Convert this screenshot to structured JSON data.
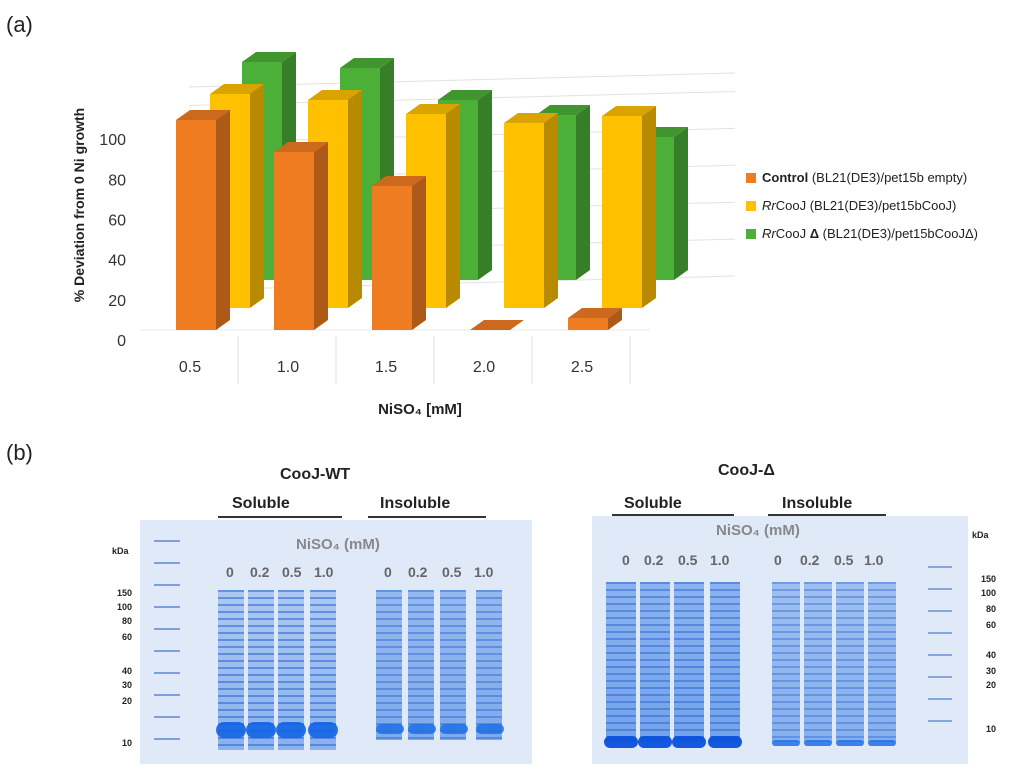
{
  "panel_a_label": "(a)",
  "panel_b_label": "(b)",
  "chart_data": {
    "type": "bar",
    "categories": [
      "0.5",
      "1.0",
      "1.5",
      "2.0",
      "2.5"
    ],
    "xlabel": "NiSO₄ [mM]",
    "ylabel": "% Deviation from 0 Ni growth",
    "yticks": [
      "0",
      "20",
      "40",
      "60",
      "80",
      "100"
    ],
    "ylim": [
      0,
      100
    ],
    "legend_position": "right",
    "series": [
      {
        "name": "Control",
        "name_suffix": " (BL21(DE3)/pet15b empty)",
        "color": "#f07c22",
        "values": [
          94,
          80,
          65,
          0,
          5
        ]
      },
      {
        "name": "RrCooJ",
        "name_prefix": "Rr",
        "name_main": "CooJ",
        "name_suffix": " (BL21(DE3)/pet15bCooJ)",
        "color": "#ffc000",
        "values": [
          100,
          100,
          100,
          100,
          100
        ]
      },
      {
        "name": "RrCooJ Δ",
        "name_prefix": "Rr",
        "name_main": "CooJ ",
        "name_bold": "Δ",
        "name_suffix": " (BL21(DE3)/pet15bCooJΔ)",
        "color": "#4caf37",
        "values": [
          100,
          100,
          100,
          100,
          100
        ]
      }
    ]
  },
  "gels": [
    {
      "title": "CooJ-WT",
      "fraction_soluble": "Soluble",
      "fraction_insoluble": "Insoluble",
      "nisO4_label": "NiSO₄ (mM)",
      "concentrations": [
        "0",
        "0.2",
        "0.5",
        "1.0",
        "0",
        "0.2",
        "0.5",
        "1.0"
      ],
      "kda_label": "kDa",
      "mw_markers": [
        "150",
        "100",
        "80",
        "60",
        "40",
        "30",
        "20",
        "10"
      ]
    },
    {
      "title": "CooJ-Δ",
      "fraction_soluble": "Soluble",
      "fraction_insoluble": "Insoluble",
      "nisO4_label": "NiSO₄ (mM)",
      "concentrations": [
        "0",
        "0.2",
        "0.5",
        "1.0",
        "0",
        "0.2",
        "0.5",
        "1.0"
      ],
      "kda_label": "kDa",
      "mw_markers": [
        "150",
        "100",
        "80",
        "60",
        "40",
        "30",
        "20",
        "10"
      ]
    }
  ]
}
